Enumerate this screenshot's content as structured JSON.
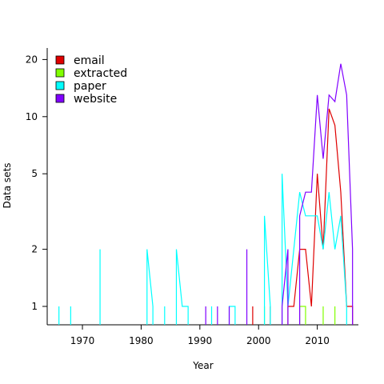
{
  "chart_data": {
    "type": "line",
    "title": "",
    "xlabel": "Year",
    "ylabel": "Data sets",
    "yscale": "log",
    "xlim": [
      1964,
      2017
    ],
    "ylim": [
      0.8,
      23
    ],
    "xticks": [
      1970,
      1980,
      1990,
      2000,
      2010
    ],
    "yticks": [
      1,
      2,
      5,
      10,
      20
    ],
    "legend_position": "top-left",
    "grid": false,
    "series": [
      {
        "name": "email",
        "color": "#DF0000",
        "points": [
          [
            1999,
            1
          ],
          [
            2002,
            1
          ],
          [
            2005,
            1
          ],
          [
            2006,
            1
          ],
          [
            2007,
            2
          ],
          [
            2008,
            2
          ],
          [
            2009,
            1
          ],
          [
            2010,
            5
          ],
          [
            2011,
            2
          ],
          [
            2012,
            11
          ],
          [
            2013,
            9
          ],
          [
            2014,
            4
          ],
          [
            2015,
            1
          ],
          [
            2016,
            1
          ]
        ]
      },
      {
        "name": "extracted",
        "color": "#80FF00",
        "points": [
          [
            2001,
            1
          ],
          [
            2007,
            1
          ],
          [
            2008,
            1
          ],
          [
            2011,
            1
          ],
          [
            2013,
            1
          ]
        ]
      },
      {
        "name": "paper",
        "color": "#00FFFF",
        "points": [
          [
            1966,
            1
          ],
          [
            1968,
            1
          ],
          [
            1973,
            2
          ],
          [
            1981,
            2
          ],
          [
            1982,
            1
          ],
          [
            1984,
            1
          ],
          [
            1986,
            2
          ],
          [
            1987,
            1
          ],
          [
            1988,
            1
          ],
          [
            1992,
            1
          ],
          [
            1995,
            1
          ],
          [
            1996,
            1
          ],
          [
            2001,
            3
          ],
          [
            2002,
            1
          ],
          [
            2004,
            5
          ],
          [
            2005,
            1
          ],
          [
            2006,
            2
          ],
          [
            2007,
            4
          ],
          [
            2008,
            3
          ],
          [
            2009,
            3
          ],
          [
            2010,
            3
          ],
          [
            2011,
            2
          ],
          [
            2012,
            4
          ],
          [
            2013,
            2
          ],
          [
            2014,
            3
          ],
          [
            2015,
            1
          ]
        ]
      },
      {
        "name": "website",
        "color": "#8000FF",
        "points": [
          [
            1991,
            1
          ],
          [
            1993,
            1
          ],
          [
            1995,
            1
          ],
          [
            1998,
            2
          ],
          [
            2004,
            1
          ],
          [
            2005,
            2
          ],
          [
            2007,
            3
          ],
          [
            2008,
            4
          ],
          [
            2009,
            4
          ],
          [
            2010,
            13
          ],
          [
            2011,
            6
          ],
          [
            2012,
            13
          ],
          [
            2013,
            12
          ],
          [
            2014,
            19
          ],
          [
            2015,
            13
          ],
          [
            2016,
            2
          ]
        ]
      }
    ]
  }
}
